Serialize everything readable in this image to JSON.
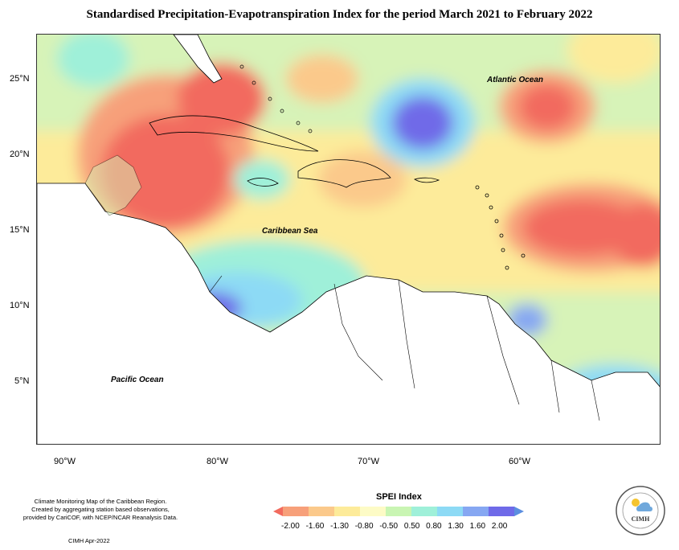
{
  "title": "Standardised Precipitation-Evapotranspiration Index for the period March 2021 to February 2022",
  "latitude_labels": [
    "25°N",
    "20°N",
    "15°N",
    "10°N",
    "5°N"
  ],
  "longitude_labels": [
    "90°W",
    "80°W",
    "70°W",
    "60°W"
  ],
  "ocean_labels": {
    "atlantic": "Atlantic Ocean",
    "caribbean": "Caribbean Sea",
    "pacific": "Pacific Ocean"
  },
  "credits": [
    "Climate Monitoring Map of the Caribbean Region.",
    "Created by aggregating station based observations,",
    "provided by CariCOF, with NCEP/NCAR Reanalysis Data."
  ],
  "credit_date": "CIMH Apr-2022",
  "legend": {
    "title": "SPEI Index",
    "ticks": [
      "-2.00",
      "-1.60",
      "-1.30",
      "-0.80",
      "-0.50",
      "0.50",
      "0.80",
      "1.30",
      "1.60",
      "2.00"
    ],
    "colors": [
      "#f26b5e",
      "#f7a07a",
      "#fbc98b",
      "#fdeb9a",
      "#fdfbc6",
      "#c9f5b3",
      "#9ff0d9",
      "#8ddaf5",
      "#86a7f2",
      "#6f6ae8",
      "#5b8ee0"
    ]
  },
  "logo_text": "CIMH"
}
